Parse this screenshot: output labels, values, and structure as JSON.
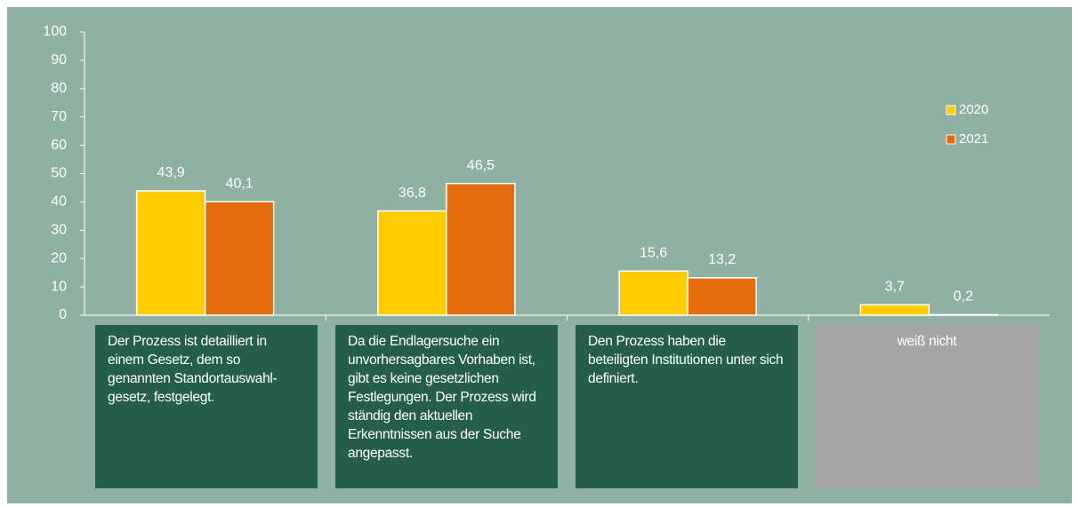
{
  "chart_data": {
    "type": "bar",
    "categories": [
      "Der Prozess ist detailliert in einem Gesetz, dem so genannten Standortauswahl-gesetz, festgelegt.",
      "Da die Endlagersuche ein unvorhersagbares Vorhaben ist, gibt es keine gesetzlichen Festlegungen. Der Prozess wird ständig den aktuellen Erkenntnissen aus der Suche angepasst.",
      "Den Prozess haben die beteiligten Institutionen unter sich definiert.",
      "weiß nicht"
    ],
    "category_colors": [
      "#255e4b",
      "#255e4b",
      "#255e4b",
      "#a6a6a6"
    ],
    "series": [
      {
        "name": "2020",
        "color": "#ffcc00",
        "values": [
          43.9,
          36.8,
          15.6,
          3.7
        ],
        "value_labels": [
          "43,9",
          "36,8",
          "15,6",
          "3,7"
        ]
      },
      {
        "name": "2021",
        "color": "#e46c0a",
        "values": [
          40.1,
          46.5,
          13.2,
          0.2
        ],
        "value_labels": [
          "40,1",
          "46,5",
          "13,2",
          "0,2"
        ]
      }
    ],
    "ylim": [
      0,
      100
    ],
    "yticks": [
      0,
      10,
      20,
      30,
      40,
      50,
      60,
      70,
      80,
      90,
      100
    ],
    "grid": false,
    "legend": "right"
  }
}
